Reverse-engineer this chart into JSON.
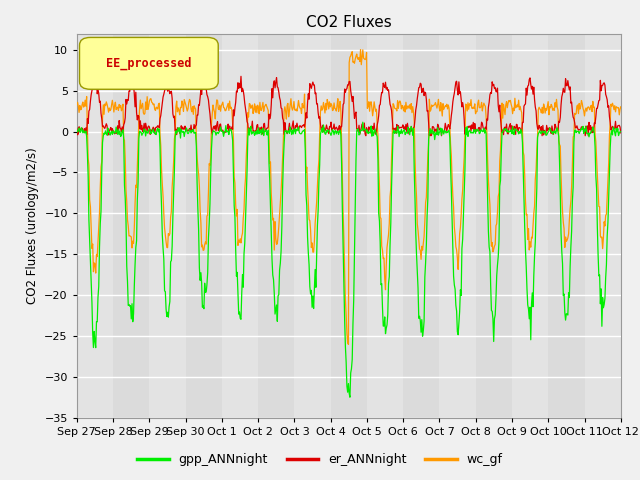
{
  "title": "CO2 Fluxes",
  "ylabel": "CO2 Fluxes (urology/m2/s)",
  "ylim": [
    -35,
    12
  ],
  "yticks": [
    -35,
    -30,
    -25,
    -20,
    -15,
    -10,
    -5,
    0,
    5,
    10
  ],
  "background_color": "#f0f0f0",
  "plot_bg_color": "#d8d8d8",
  "alt_bg_color": "#e8e8e8",
  "legend_label": "EE_processed",
  "colors": {
    "gpp_ANNnight": "#00ee00",
    "er_ANNnight": "#dd0000",
    "wc_gf": "#ff9900"
  },
  "n_days": 15,
  "points_per_day": 48,
  "xtick_labels": [
    "Sep 27",
    "Sep 28",
    "Sep 29",
    "Sep 30",
    "Oct 1",
    "Oct 2",
    "Oct 3",
    "Oct 4",
    "Oct 5",
    "Oct 6",
    "Oct 7",
    "Oct 8",
    "Oct 9",
    "Oct 10",
    "Oct 11",
    "Oct 12"
  ]
}
